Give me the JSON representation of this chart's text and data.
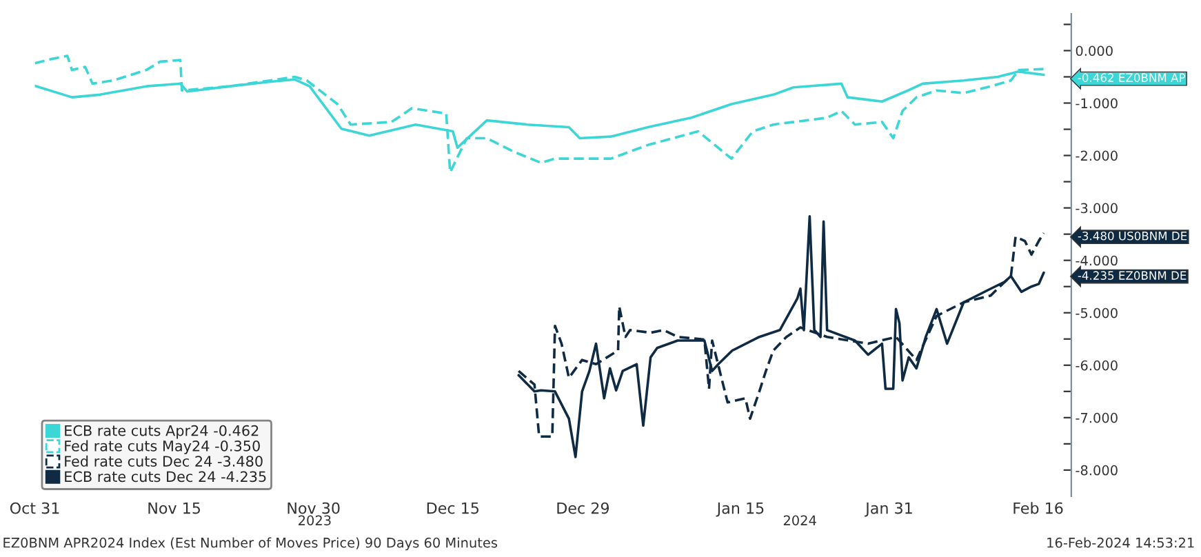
{
  "chart_data": {
    "type": "line",
    "xlim": [
      "2023-10-31",
      "2024-02-19T14:00"
    ],
    "ylim": [
      -8.5,
      0.7
    ],
    "xticks": [
      {
        "value": "2023-10-31",
        "label": "Oct 31"
      },
      {
        "value": "2023-11-15",
        "label": "Nov 15"
      },
      {
        "value": "2023-11-30",
        "label": "Nov 30"
      },
      {
        "value": "2023-12-15",
        "label": "Dec 15"
      },
      {
        "value": "2023-12-29",
        "label": "Dec 29"
      },
      {
        "value": "2024-01-15",
        "label": "Jan 15"
      },
      {
        "value": "2024-01-31",
        "label": "Jan 31"
      },
      {
        "value": "2024-02-16",
        "label": "Feb 16"
      }
    ],
    "yticks": [
      {
        "value": 0.5,
        "label": null
      },
      {
        "value": 0,
        "label": "0.000"
      },
      {
        "value": -0.5,
        "label": null
      },
      {
        "value": -1,
        "label": "-1.000"
      },
      {
        "value": -1.5,
        "label": null
      },
      {
        "value": -2,
        "label": "-2.000"
      },
      {
        "value": -2.5,
        "label": null
      },
      {
        "value": -3,
        "label": "-3.000"
      },
      {
        "value": -3.5,
        "label": null
      },
      {
        "value": -4,
        "label": "-4.000"
      },
      {
        "value": -4.5,
        "label": null
      },
      {
        "value": -5,
        "label": "-5.000"
      },
      {
        "value": -5.5,
        "label": null
      },
      {
        "value": -6,
        "label": "-6.000"
      },
      {
        "value": -6.5,
        "label": null
      },
      {
        "value": -7,
        "label": "-7.000"
      },
      {
        "value": -7.5,
        "label": null
      },
      {
        "value": -8,
        "label": "-8.000"
      }
    ],
    "grid": false,
    "legend": "bottom left",
    "series": [
      {
        "name": "ECB rate cuts Apr24 -0.462",
        "color": "#3dd6d6",
        "line_style": "solid",
        "x": [
          "2023-10-31",
          "2023-11-04",
          "2023-11-07",
          "2023-11-12",
          "2023-11-15T16:00",
          "2023-11-16T10:00",
          "2023-11-21",
          "2023-11-25",
          "2023-11-28",
          "2023-11-29T14:00",
          "2023-12-03",
          "2023-12-06",
          "2023-12-11",
          "2023-12-15",
          "2023-12-15T12:00",
          "2023-12-18T16:00",
          "2023-12-23",
          "2023-12-27T12:00",
          "2023-12-28T16:00",
          "2024-01-01",
          "2024-01-05",
          "2024-01-09T16:00",
          "2024-01-14",
          "2024-01-18T12:00",
          "2024-01-20T16:00",
          "2024-01-25T20:00",
          "2024-01-26T12:00",
          "2024-01-30T05:00",
          "2024-02-02",
          "2024-02-03T14:00",
          "2024-02-08",
          "2024-02-11T16:00",
          "2024-02-13T22:00",
          "2024-02-16T14:53"
        ],
        "values": [
          -0.67,
          -0.89,
          -0.84,
          -0.68,
          -0.63,
          -0.78,
          -0.68,
          -0.6,
          -0.55,
          -0.68,
          -1.49,
          -1.62,
          -1.41,
          -1.54,
          -1.85,
          -1.33,
          -1.41,
          -1.46,
          -1.67,
          -1.64,
          -1.46,
          -1.28,
          -1.02,
          -0.84,
          -0.7,
          -0.63,
          -0.89,
          -0.97,
          -0.76,
          -0.63,
          -0.57,
          -0.5,
          -0.4,
          -0.462
        ]
      },
      {
        "name": "Fed rate cuts May24 -0.350",
        "color": "#3dd6d6",
        "line_style": "dashed",
        "x": [
          "2023-10-31",
          "2023-11-01T19:00",
          "2023-11-03T12:00",
          "2023-11-04",
          "2023-11-05T10:00",
          "2023-11-06T05:00",
          "2023-11-08T10:00",
          "2023-11-12",
          "2023-11-13T12:00",
          "2023-11-15T16:00",
          "2023-11-15T20:00",
          "2023-11-21",
          "2023-11-28",
          "2023-11-29T07:00",
          "2023-12-02T14:00",
          "2023-12-04",
          "2023-12-08T10:00",
          "2023-12-10T14:00",
          "2023-12-14T07:00",
          "2023-12-14T17:00",
          "2023-12-16T12:00",
          "2023-12-18T16:00",
          "2023-12-21T14:00",
          "2023-12-24T12:00",
          "2023-12-26",
          "2023-12-28T22:00",
          "2024-01-01",
          "2024-01-05",
          "2024-01-10T10:00",
          "2024-01-14",
          "2024-01-16T07:00",
          "2024-01-18T12:00",
          "2024-01-24T07:00",
          "2024-01-25T20:00",
          "2024-01-27T07:00",
          "2024-01-30T05:00",
          "2024-01-31T10:00",
          "2024-02-01T10:00",
          "2024-02-02T22:00",
          "2024-02-05T02:00",
          "2024-02-08",
          "2024-02-10T22:00",
          "2024-02-13T02:00",
          "2024-02-13T22:00",
          "2024-02-16T14:53"
        ],
        "values": [
          -0.24,
          -0.16,
          -0.1,
          -0.37,
          -0.31,
          -0.63,
          -0.57,
          -0.37,
          -0.21,
          -0.18,
          -0.76,
          -0.68,
          -0.5,
          -0.57,
          -1.02,
          -1.41,
          -1.36,
          -1.1,
          -1.2,
          -2.32,
          -1.67,
          -1.67,
          -1.93,
          -2.14,
          -2.06,
          -2.06,
          -2.06,
          -1.8,
          -1.54,
          -2.06,
          -1.54,
          -1.41,
          -1.28,
          -1.15,
          -1.41,
          -1.36,
          -1.67,
          -1.15,
          -0.89,
          -0.76,
          -0.81,
          -0.68,
          -0.57,
          -0.37,
          -0.35
        ]
      },
      {
        "name": "Fed rate cuts Dec 24 -3.480",
        "color": "#0f2b44",
        "line_style": "dashed",
        "x": [
          "2023-12-22T02:00",
          "2023-12-23T19:00",
          "2023-12-24T07:00",
          "2023-12-25T17:00",
          "2023-12-26T00:00",
          "2023-12-26T17:00",
          "2023-12-27T12:00",
          "2023-12-28T22:00",
          "2023-12-30T10:00",
          "2024-01-01T19:00",
          "2024-01-01T22:00",
          "2024-01-02T14:00",
          "2024-01-03T02:00",
          "2024-01-05T07:00",
          "2024-01-06T17:00",
          "2024-01-08T05:00",
          "2024-01-11T02:00",
          "2024-01-11T14:00",
          "2024-01-11T22:00",
          "2024-01-13T14:00",
          "2024-01-15T12:00",
          "2024-01-16T00:00",
          "2024-01-17",
          "2024-01-17T17:00",
          "2024-01-18T12:00",
          "2024-01-19T22:00",
          "2024-01-21T10:00",
          "2024-01-24T07:00",
          "2024-01-28T17:00",
          "2024-01-31T17:00",
          "2024-02-02T22:00",
          "2024-02-05T02:00",
          "2024-02-08",
          "2024-02-10T22:00",
          "2024-02-12T10:00",
          "2024-02-13T02:00",
          "2024-02-13T14:00",
          "2024-02-14T14:00",
          "2024-02-15T07:00",
          "2024-02-16T02:00",
          "2024-02-16T14:53"
        ],
        "values": [
          -6.11,
          -6.37,
          -7.36,
          -7.36,
          -5.25,
          -5.59,
          -6.24,
          -5.9,
          -5.98,
          -5.72,
          -4.88,
          -5.46,
          -5.33,
          -5.38,
          -5.33,
          -5.46,
          -5.51,
          -6.45,
          -5.53,
          -6.71,
          -6.63,
          -7.02,
          -6.5,
          -6.11,
          -5.72,
          -5.46,
          -5.28,
          -5.46,
          -5.59,
          -5.46,
          -5.9,
          -5.06,
          -4.8,
          -4.67,
          -4.41,
          -4.3,
          -3.55,
          -3.63,
          -3.89,
          -3.63,
          -3.48
        ]
      },
      {
        "name": "ECB rate cuts Dec 24 -4.235",
        "color": "#0f2b44",
        "line_style": "solid",
        "x": [
          "2023-12-22T02:00",
          "2023-12-23T19:00",
          "2023-12-24T12:00",
          "2023-12-26",
          "2023-12-27T12:00",
          "2023-12-28T05:00",
          "2023-12-28T22:00",
          "2023-12-29T17:00",
          "2023-12-30T10:00",
          "2023-12-31T07:00",
          "2023-12-31T22:00",
          "2024-01-01T14:00",
          "2024-01-02T07:00",
          "2024-01-03T19:00",
          "2024-01-04T12:00",
          "2024-01-05T07:00",
          "2024-01-06",
          "2024-01-08T05:00",
          "2024-01-11T02:00",
          "2024-01-11T22:00",
          "2024-01-12T14:00",
          "2024-01-14T02:00",
          "2024-01-17",
          "2024-01-19T05:00",
          "2024-01-21T02:00",
          "2024-01-21T10:00",
          "2024-01-21T19:00",
          "2024-01-22T10:00",
          "2024-01-22T22:00",
          "2024-01-23T14:00",
          "2024-01-23T22:00",
          "2024-01-24T07:00",
          "2024-01-27T07:00",
          "2024-01-28T17:00",
          "2024-01-30T05:00",
          "2024-01-30T14:00",
          "2024-01-31T10:00",
          "2024-01-31T17:00",
          "2024-02-01T02:00",
          "2024-02-01T10:00",
          "2024-02-02T02:00",
          "2024-02-02T22:00",
          "2024-02-03T22:00",
          "2024-02-05T02:00",
          "2024-02-06T05:00",
          "2024-02-08",
          "2024-02-10T22:00",
          "2024-02-12T10:00",
          "2024-02-13T02:00",
          "2024-02-14T05:00",
          "2024-02-15T07:00",
          "2024-02-16T02:00",
          "2024-02-16T14:53"
        ],
        "values": [
          -6.19,
          -6.5,
          -6.48,
          -6.5,
          -7.02,
          -7.75,
          -6.5,
          -6.11,
          -5.59,
          -6.63,
          -6.06,
          -6.48,
          -6.11,
          -5.98,
          -7.15,
          -5.85,
          -5.67,
          -5.53,
          -5.53,
          -6.11,
          -5.98,
          -5.72,
          -5.46,
          -5.33,
          -4.73,
          -4.54,
          -5.33,
          -3.16,
          -5.33,
          -5.46,
          -3.26,
          -5.33,
          -5.53,
          -5.8,
          -5.59,
          -6.45,
          -6.45,
          -4.93,
          -5.2,
          -6.29,
          -5.85,
          -6.06,
          -5.46,
          -4.93,
          -5.59,
          -4.8,
          -4.54,
          -4.41,
          -4.3,
          -4.6,
          -4.5,
          -4.45,
          -4.235
        ]
      }
    ],
    "annotations": [
      "EZ0BNM APR2024 Index (Est Number of Moves Price) 90 Days 60 Minutes",
      "16-Feb-2024 14:53:21",
      "2023",
      "2024",
      "-0.462 EZ0BNM AP",
      "-3.480 US0BNM DE",
      "-4.235 EZ0BNM DE"
    ]
  }
}
